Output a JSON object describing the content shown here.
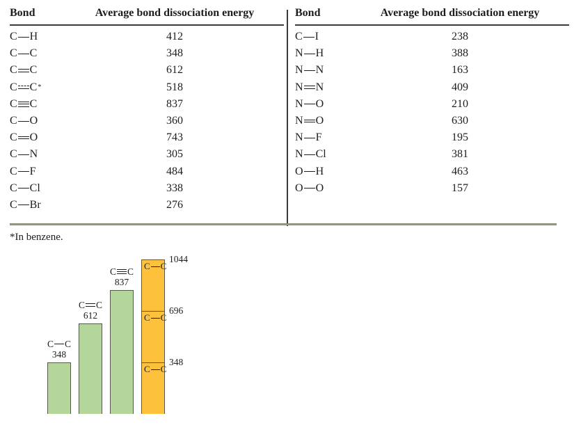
{
  "tables": [
    {
      "headers": [
        "Bond",
        "Average bond dissociation energy"
      ],
      "rows": [
        {
          "a": "C",
          "bond": "single",
          "b": "H",
          "value": "412"
        },
        {
          "a": "C",
          "bond": "single",
          "b": "C",
          "value": "348"
        },
        {
          "a": "C",
          "bond": "double",
          "b": "C",
          "value": "612"
        },
        {
          "a": "C",
          "bond": "aromatic",
          "b": "C",
          "sup": "*",
          "value": "518"
        },
        {
          "a": "C",
          "bond": "triple",
          "b": "C",
          "value": "837"
        },
        {
          "a": "C",
          "bond": "single",
          "b": "O",
          "value": "360"
        },
        {
          "a": "C",
          "bond": "double",
          "b": "O",
          "value": "743"
        },
        {
          "a": "C",
          "bond": "single",
          "b": "N",
          "value": "305"
        },
        {
          "a": "C",
          "bond": "single",
          "b": "F",
          "value": "484"
        },
        {
          "a": "C",
          "bond": "single",
          "b": "Cl",
          "value": "338"
        },
        {
          "a": "C",
          "bond": "single",
          "b": "Br",
          "value": "276"
        }
      ]
    },
    {
      "headers": [
        "Bond",
        "Average bond dissociation energy"
      ],
      "rows": [
        {
          "a": "C",
          "bond": "single",
          "b": "I",
          "value": "238"
        },
        {
          "a": "N",
          "bond": "single",
          "b": "H",
          "value": "388"
        },
        {
          "a": "N",
          "bond": "single",
          "b": "N",
          "value": "163"
        },
        {
          "a": "N",
          "bond": "double",
          "b": "N",
          "value": "409"
        },
        {
          "a": "N",
          "bond": "single",
          "b": "O",
          "value": "210"
        },
        {
          "a": "N",
          "bond": "double",
          "b": "O",
          "value": "630"
        },
        {
          "a": "N",
          "bond": "single",
          "b": "F",
          "value": "195"
        },
        {
          "a": "N",
          "bond": "single",
          "b": "Cl",
          "value": "381"
        },
        {
          "a": "O",
          "bond": "single",
          "b": "H",
          "value": "463"
        },
        {
          "a": "O",
          "bond": "single",
          "b": "O",
          "value": "157"
        }
      ]
    }
  ],
  "footnote": "*In benzene.",
  "colors": {
    "green_bar": "#b5d69a",
    "orange_bar": "#fdc13c",
    "bar_border": "#57574b",
    "table_rule_green": "#7d8d5e",
    "header_rule": "#3a3a3a",
    "text": "#1d1d1b"
  },
  "chart_data": {
    "type": "bar",
    "title": "",
    "xlabel": "",
    "ylabel": "",
    "ylim": [
      0,
      1044
    ],
    "grid": false,
    "legend": "none",
    "bars": [
      {
        "kind": "simple",
        "label": "C—C",
        "bond": {
          "a": "C",
          "type": "single",
          "b": "C"
        },
        "value": 348,
        "color_key": "green_bar"
      },
      {
        "kind": "simple",
        "label": "C═C",
        "bond": {
          "a": "C",
          "type": "double",
          "b": "C"
        },
        "value": 612,
        "color_key": "green_bar"
      },
      {
        "kind": "simple",
        "label": "C≡C",
        "bond": {
          "a": "C",
          "type": "triple",
          "b": "C"
        },
        "value": 837,
        "color_key": "green_bar"
      },
      {
        "kind": "stacked",
        "color_key": "orange_bar",
        "total": 1044,
        "segments": [
          {
            "bond": {
              "a": "C",
              "type": "single",
              "b": "C"
            },
            "value": 348
          },
          {
            "bond": {
              "a": "C",
              "type": "single",
              "b": "C"
            },
            "value": 348
          },
          {
            "bond": {
              "a": "C",
              "type": "single",
              "b": "C"
            },
            "value": 348
          }
        ],
        "ticks": [
          348,
          696,
          1044
        ]
      }
    ]
  }
}
